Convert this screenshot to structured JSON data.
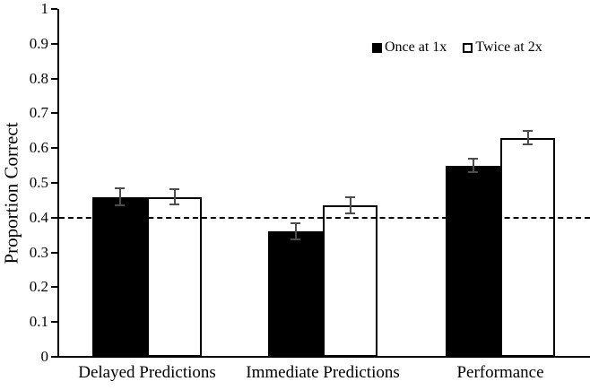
{
  "chart_data": {
    "type": "bar",
    "title": "",
    "xlabel": "",
    "ylabel": "Proportion Correct",
    "ylim": [
      0,
      1
    ],
    "ytick_step": 0.1,
    "yticks": [
      "0",
      "0.1",
      "0.2",
      "0.3",
      "0.4",
      "0.5",
      "0.6",
      "0.7",
      "0.8",
      "0.9",
      "1"
    ],
    "grid": false,
    "legend_position": "top-right-inside",
    "reference_line": {
      "value": 0.4,
      "style": "dashed",
      "color": "#000000"
    },
    "error_bar_color": "#4d4d4d",
    "categories": [
      "Delayed Predictions",
      "Immediate Predictions",
      "Performance"
    ],
    "series": [
      {
        "name": "Once at 1x",
        "marker": "filled-square",
        "fill": "#000000",
        "values": [
          0.46,
          0.36,
          0.55
        ],
        "errors": [
          0.028,
          0.026,
          0.022
        ]
      },
      {
        "name": "Twice at 2x",
        "marker": "open-square",
        "fill": "#ffffff",
        "values": [
          0.46,
          0.435,
          0.63
        ],
        "errors": [
          0.024,
          0.026,
          0.022
        ]
      }
    ]
  }
}
